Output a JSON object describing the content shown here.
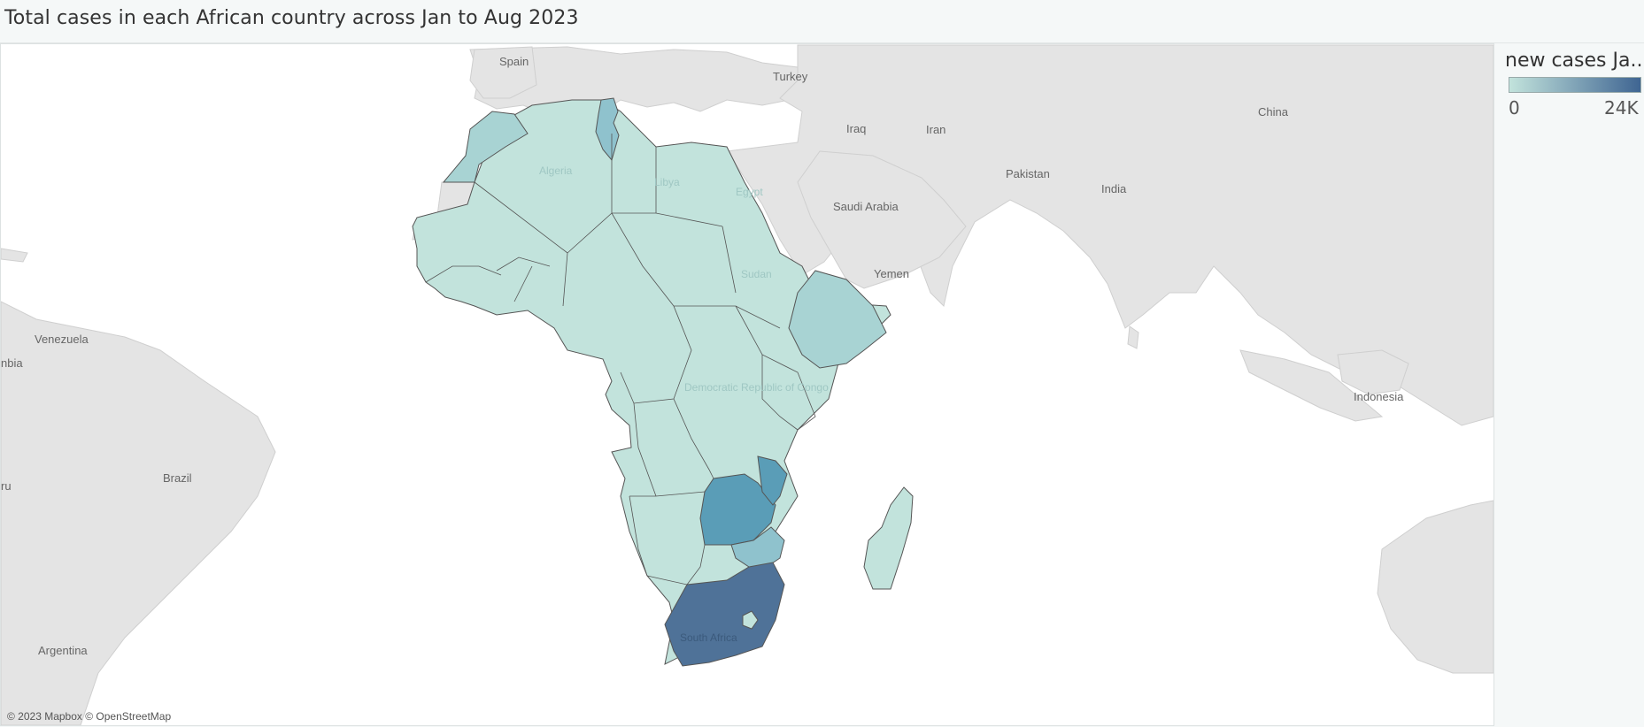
{
  "title": "Total cases in each African country across Jan to Aug 2023",
  "legend": {
    "title": "new cases Ja..",
    "min_label": "0",
    "max_label": "24K",
    "color_low": "#c2e3dc",
    "color_high": "#3f6592"
  },
  "attribution": "© 2023 Mapbox © OpenStreetMap",
  "place_labels": {
    "spain": "Spain",
    "turkey": "Turkey",
    "iraq": "Iraq",
    "iran": "Iran",
    "pakistan": "Pakistan",
    "saudi_arabia": "Saudi Arabia",
    "yemen": "Yemen",
    "china": "China",
    "india": "India",
    "indonesia": "Indonesia",
    "venezuela": "Venezuela",
    "colombia_partial": "nbia",
    "brazil": "Brazil",
    "peru_partial": "ru",
    "argentina": "Argentina",
    "algeria": "Algeria",
    "libya": "Libya",
    "egypt": "Egypt",
    "sudan": "Sudan",
    "drc": "Democratic Republic of Congo",
    "south_africa": "South Africa"
  },
  "choropleth": [
    {
      "name": "South Africa",
      "level": "highest",
      "color": "#4f7298"
    },
    {
      "name": "Zambia",
      "level": "high",
      "color": "#5a9db7"
    },
    {
      "name": "Malawi",
      "level": "high",
      "color": "#5a9db7"
    },
    {
      "name": "Zimbabwe",
      "level": "medium",
      "color": "#8fc2cd"
    },
    {
      "name": "Tunisia",
      "level": "medium",
      "color": "#8fc2cd"
    },
    {
      "name": "Morocco",
      "level": "low-medium",
      "color": "#a8d3d3"
    },
    {
      "name": "Ethiopia",
      "level": "low-medium",
      "color": "#a8d3d3"
    },
    {
      "name": "Other African countries",
      "level": "low",
      "color": "#c2e3dc"
    }
  ]
}
